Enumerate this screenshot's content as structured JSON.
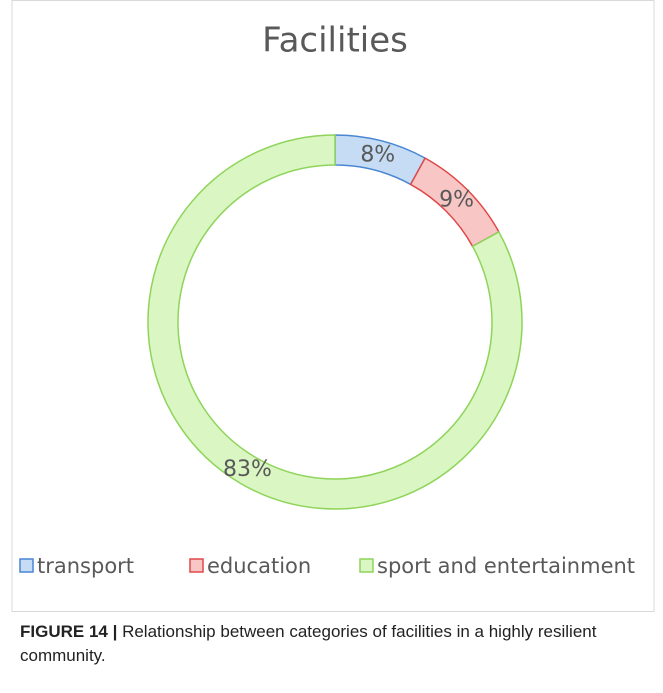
{
  "chart_data": {
    "type": "pie",
    "title": "Facilities",
    "categories": [
      "transport",
      "education",
      "sport and entertainment"
    ],
    "values": [
      8,
      9,
      83
    ],
    "value_labels": [
      "8%",
      "9%",
      "83%"
    ],
    "colors": [
      "#c5dcf4",
      "#f9c6c6",
      "#d9f6c3"
    ],
    "edge_colors": [
      "#4a86d4",
      "#e04848",
      "#8fd45a"
    ],
    "legend": "bottom"
  },
  "caption": {
    "label": "FIGURE 14 |",
    "text": "Relationship between categories of facilities in a highly resilient community."
  }
}
